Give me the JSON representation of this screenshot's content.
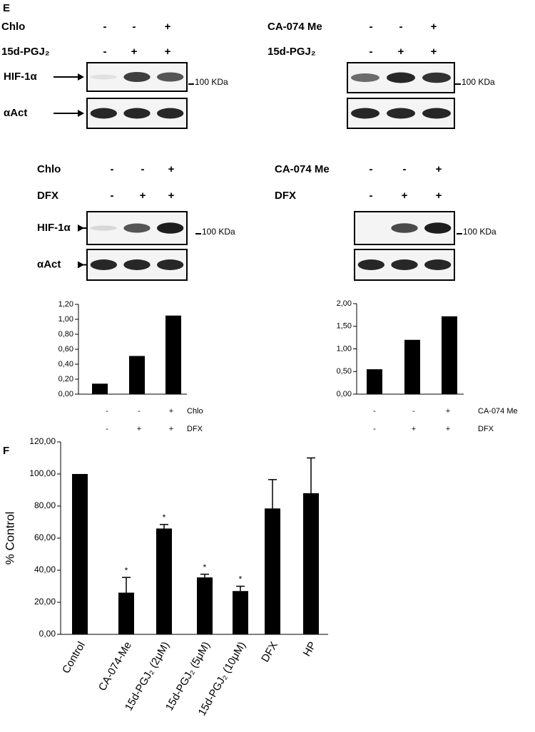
{
  "panel_labels": [
    "E",
    "F"
  ],
  "blots": [
    {
      "rows": [
        {
          "label": "Chlo",
          "signs": [
            "-",
            "-",
            "+"
          ]
        },
        {
          "label": "15d-PGJ₂",
          "signs": [
            "-",
            "+",
            "+"
          ]
        }
      ],
      "bands": [
        "HIF-1α",
        "αAct"
      ],
      "marker": "100 KDa"
    },
    {
      "rows": [
        {
          "label": "CA-074 Me",
          "signs": [
            "-",
            "-",
            "+"
          ]
        },
        {
          "label": "15d-PGJ₂",
          "signs": [
            "-",
            "+",
            "+"
          ]
        }
      ],
      "marker": "100 KDa"
    },
    {
      "rows": [
        {
          "label": "Chlo",
          "signs": [
            "-",
            "-",
            "+"
          ]
        },
        {
          "label": "DFX",
          "signs": [
            "-",
            "+",
            "+"
          ]
        }
      ],
      "bands": [
        "HIF-1α",
        "αAct"
      ],
      "marker": "100 KDa"
    },
    {
      "rows": [
        {
          "label": "CA-074 Me",
          "signs": [
            "-",
            "-",
            "+"
          ]
        },
        {
          "label": "DFX",
          "signs": [
            "-",
            "+",
            "+"
          ]
        }
      ],
      "marker": "100 KDa"
    }
  ],
  "chart_data": [
    {
      "type": "bar",
      "values": [
        0.14,
        0.51,
        1.05
      ],
      "color": "#000000",
      "ylim": [
        0,
        1.2
      ],
      "yticks": [
        {
          "value": 0,
          "label": "0,00"
        },
        {
          "value": 0.2,
          "label": "0,20"
        },
        {
          "value": 0.4,
          "label": "0,40"
        },
        {
          "value": 0.6,
          "label": "0,60"
        },
        {
          "value": 0.8,
          "label": "0,80"
        },
        {
          "value": 1.0,
          "label": "1,00"
        },
        {
          "value": 1.2,
          "label": "1,20"
        }
      ],
      "conditions": [
        {
          "name": "Chlo",
          "signs": [
            "-",
            "-",
            "+"
          ]
        },
        {
          "name": "DFX",
          "signs": [
            "-",
            "+",
            "+"
          ]
        }
      ]
    },
    {
      "type": "bar",
      "values": [
        0.55,
        1.2,
        1.72
      ],
      "color": "#000000",
      "ylim": [
        0,
        2
      ],
      "yticks": [
        {
          "value": 0,
          "label": "0,00"
        },
        {
          "value": 0.5,
          "label": "0,50"
        },
        {
          "value": 1.0,
          "label": "1,00"
        },
        {
          "value": 1.5,
          "label": "1,50"
        },
        {
          "value": 2.0,
          "label": "2,00"
        }
      ],
      "conditions": [
        {
          "name": "CA-074 Me",
          "signs": [
            "-",
            "-",
            "+"
          ]
        },
        {
          "name": "DFX",
          "signs": [
            "-",
            "+",
            "+"
          ]
        }
      ]
    },
    {
      "type": "bar",
      "ylabel": "% Control",
      "color": "#000000",
      "categories": [
        "Control",
        "CA-074-Me",
        "15d-PGJ₂ (2μM)",
        "15d-PGJ₂ (5μM)",
        "15d-PGJ₂ (10μM)",
        "DFX",
        "HP"
      ],
      "values": [
        100,
        26,
        66,
        35.5,
        27,
        78.5,
        88
      ],
      "errors": [
        null,
        9.5,
        2.5,
        2,
        3,
        18,
        22
      ],
      "significance": [
        null,
        "*",
        "*",
        "*",
        "*",
        null,
        null
      ],
      "ylim": [
        0,
        120
      ],
      "yticks": [
        {
          "value": 0,
          "label": "0,00"
        },
        {
          "value": 20,
          "label": "20,00"
        },
        {
          "value": 40,
          "label": "40,00"
        },
        {
          "value": 60,
          "label": "60,00"
        },
        {
          "value": 80,
          "label": "80,00"
        },
        {
          "value": 100,
          "label": "100,00"
        },
        {
          "value": 120,
          "label": "120,00"
        }
      ]
    }
  ]
}
